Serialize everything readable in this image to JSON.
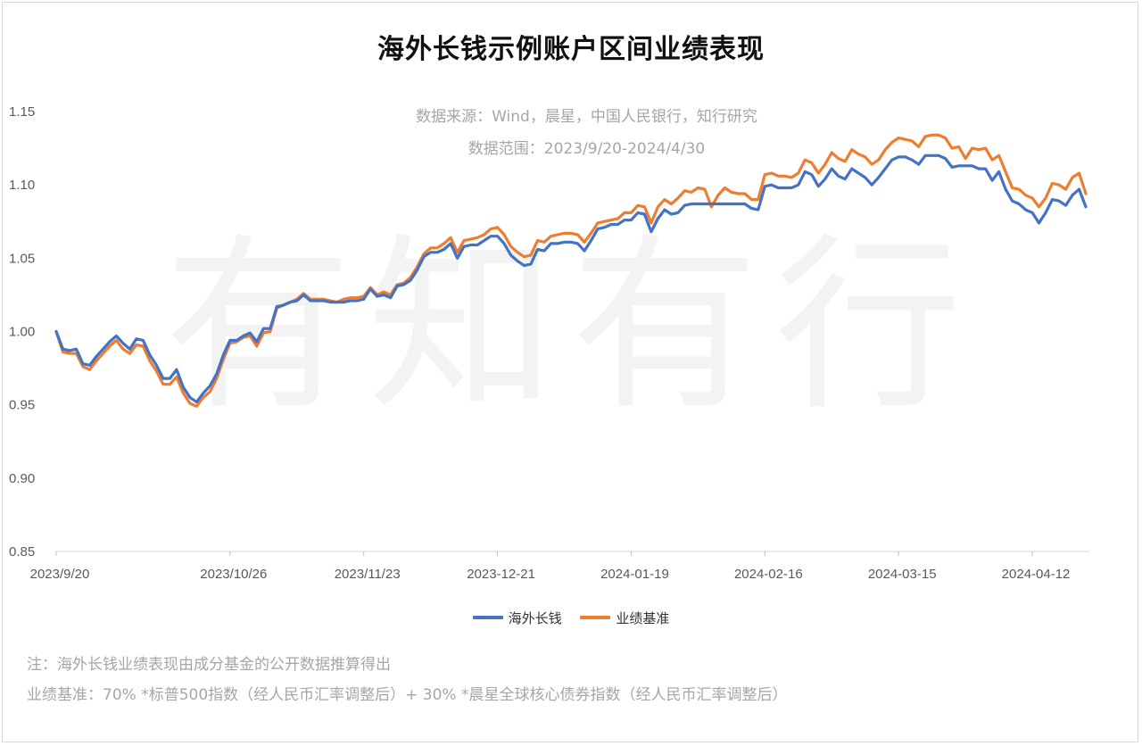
{
  "title": "海外长钱示例账户区间业绩表现",
  "source_line": "数据来源：Wind，晨星，中国人民银行，知行研究",
  "range_line": "数据范围：2023/9/20-2024/4/30",
  "watermark": "有知有行",
  "notes": {
    "note1": "注：海外长钱业绩表现由成分基金的公开数据推算得出",
    "note2": "业绩基准：70% *标普500指数（经人民币汇率调整后）+ 30% *晨星全球核心债券指数（经人民币汇率调整后）"
  },
  "chart_data": {
    "type": "line",
    "title": "海外长钱示例账户区间业绩表现",
    "xlabel": "",
    "ylabel": "",
    "ylim": [
      0.85,
      1.15
    ],
    "y_ticks": [
      "0.85",
      "0.90",
      "0.95",
      "1.00",
      "1.05",
      "1.10",
      "1.15"
    ],
    "grid": false,
    "legend_position": "bottom",
    "x_tick_labels": [
      {
        "index": 0,
        "label": "2023/9/20"
      },
      {
        "index": 26,
        "label": "2023/10/26"
      },
      {
        "index": 46,
        "label": "2023/11/23"
      },
      {
        "index": 66,
        "label": "2023-12-21"
      },
      {
        "index": 86,
        "label": "2024-01-19"
      },
      {
        "index": 106,
        "label": "2024-02-16"
      },
      {
        "index": 126,
        "label": "2024-03-15"
      },
      {
        "index": 146,
        "label": "2024-04-12"
      }
    ],
    "series": [
      {
        "name": "海外长钱",
        "color": "#4472c4",
        "values": [
          1.0,
          0.988,
          0.987,
          0.988,
          0.978,
          0.977,
          0.983,
          0.988,
          0.993,
          0.997,
          0.992,
          0.988,
          0.995,
          0.994,
          0.984,
          0.977,
          0.968,
          0.968,
          0.974,
          0.962,
          0.955,
          0.952,
          0.958,
          0.963,
          0.971,
          0.984,
          0.994,
          0.994,
          0.997,
          0.999,
          0.993,
          1.002,
          1.002,
          1.017,
          1.018,
          1.02,
          1.021,
          1.025,
          1.021,
          1.021,
          1.021,
          1.02,
          1.02,
          1.02,
          1.021,
          1.021,
          1.022,
          1.029,
          1.024,
          1.025,
          1.023,
          1.031,
          1.032,
          1.035,
          1.042,
          1.051,
          1.054,
          1.054,
          1.056,
          1.06,
          1.05,
          1.058,
          1.059,
          1.059,
          1.062,
          1.065,
          1.065,
          1.06,
          1.052,
          1.048,
          1.045,
          1.046,
          1.056,
          1.055,
          1.06,
          1.06,
          1.061,
          1.061,
          1.06,
          1.055,
          1.062,
          1.07,
          1.071,
          1.073,
          1.073,
          1.076,
          1.076,
          1.081,
          1.08,
          1.068,
          1.077,
          1.083,
          1.08,
          1.081,
          1.086,
          1.087,
          1.087,
          1.087,
          1.087,
          1.087,
          1.087,
          1.087,
          1.087,
          1.087,
          1.084,
          1.083,
          1.099,
          1.1,
          1.098,
          1.098,
          1.098,
          1.1,
          1.109,
          1.107,
          1.099,
          1.104,
          1.111,
          1.106,
          1.104,
          1.111,
          1.108,
          1.105,
          1.1,
          1.105,
          1.111,
          1.117,
          1.119,
          1.119,
          1.117,
          1.114,
          1.12,
          1.12,
          1.12,
          1.118,
          1.112,
          1.113,
          1.113,
          1.113,
          1.111,
          1.111,
          1.103,
          1.109,
          1.097,
          1.089,
          1.087,
          1.083,
          1.081,
          1.074,
          1.081,
          1.09,
          1.089,
          1.086,
          1.093,
          1.097,
          1.085
        ]
      },
      {
        "name": "业绩基准",
        "color": "#ed7d31",
        "values": [
          1.0,
          0.986,
          0.985,
          0.985,
          0.976,
          0.974,
          0.98,
          0.985,
          0.99,
          0.994,
          0.988,
          0.985,
          0.991,
          0.99,
          0.98,
          0.973,
          0.964,
          0.964,
          0.969,
          0.958,
          0.951,
          0.949,
          0.955,
          0.959,
          0.968,
          0.981,
          0.992,
          0.993,
          0.996,
          0.997,
          0.99,
          0.999,
          1.0,
          1.016,
          1.018,
          1.02,
          1.022,
          1.026,
          1.022,
          1.022,
          1.022,
          1.021,
          1.02,
          1.022,
          1.023,
          1.023,
          1.024,
          1.03,
          1.025,
          1.027,
          1.025,
          1.032,
          1.033,
          1.037,
          1.044,
          1.053,
          1.057,
          1.057,
          1.06,
          1.064,
          1.054,
          1.062,
          1.063,
          1.064,
          1.066,
          1.07,
          1.071,
          1.066,
          1.058,
          1.054,
          1.051,
          1.052,
          1.062,
          1.061,
          1.065,
          1.066,
          1.067,
          1.067,
          1.066,
          1.061,
          1.067,
          1.074,
          1.075,
          1.076,
          1.077,
          1.081,
          1.081,
          1.086,
          1.085,
          1.074,
          1.085,
          1.09,
          1.087,
          1.091,
          1.096,
          1.095,
          1.098,
          1.097,
          1.085,
          1.093,
          1.098,
          1.095,
          1.094,
          1.094,
          1.09,
          1.09,
          1.107,
          1.108,
          1.106,
          1.106,
          1.105,
          1.108,
          1.117,
          1.115,
          1.108,
          1.114,
          1.122,
          1.118,
          1.116,
          1.124,
          1.121,
          1.119,
          1.114,
          1.117,
          1.124,
          1.129,
          1.132,
          1.131,
          1.13,
          1.126,
          1.133,
          1.134,
          1.134,
          1.132,
          1.125,
          1.126,
          1.118,
          1.125,
          1.124,
          1.125,
          1.117,
          1.12,
          1.109,
          1.098,
          1.097,
          1.093,
          1.091,
          1.085,
          1.091,
          1.101,
          1.1,
          1.097,
          1.105,
          1.108,
          1.094
        ]
      }
    ]
  }
}
